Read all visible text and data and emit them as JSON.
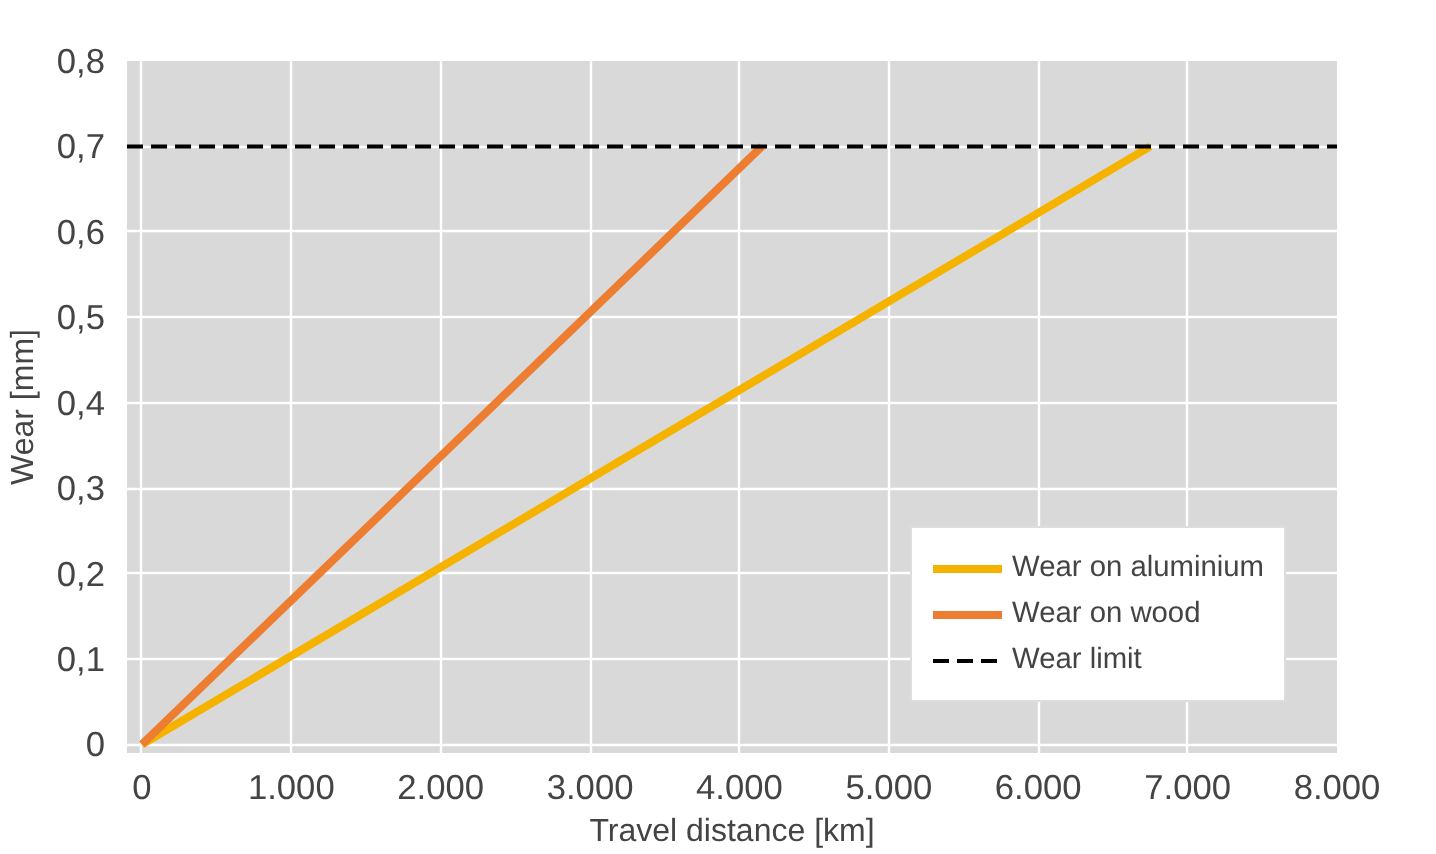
{
  "chart_data": {
    "type": "line",
    "series": [
      {
        "name": "Wear on aluminium",
        "color": "#f5b300",
        "x": [
          0,
          6750
        ],
        "values": [
          0,
          0.7
        ]
      },
      {
        "name": "Wear on wood",
        "color": "#ed7d31",
        "x": [
          0,
          4150
        ],
        "values": [
          0,
          0.7
        ]
      }
    ],
    "xlabel": "Travel distance [km]",
    "ylabel": "Wear [mm]",
    "xlim": [
      -100,
      8000
    ],
    "ylim": [
      -0.01,
      0.8
    ],
    "xticks": [
      {
        "value": 0,
        "label": "0"
      },
      {
        "value": 1000,
        "label": "1.000"
      },
      {
        "value": 2000,
        "label": "2.000"
      },
      {
        "value": 3000,
        "label": "3.000"
      },
      {
        "value": 4000,
        "label": "4.000"
      },
      {
        "value": 5000,
        "label": "5.000"
      },
      {
        "value": 6000,
        "label": "6.000"
      },
      {
        "value": 7000,
        "label": "7.000"
      },
      {
        "value": 8000,
        "label": "8.000"
      }
    ],
    "yticks": [
      {
        "value": 0,
        "label": "0"
      },
      {
        "value": 0.1,
        "label": "0,1"
      },
      {
        "value": 0.2,
        "label": "0,2"
      },
      {
        "value": 0.3,
        "label": "0,3"
      },
      {
        "value": 0.4,
        "label": "0,4"
      },
      {
        "value": 0.5,
        "label": "0,5"
      },
      {
        "value": 0.6,
        "label": "0,6"
      },
      {
        "value": 0.7,
        "label": "0,7"
      },
      {
        "value": 0.8,
        "label": "0,8"
      }
    ],
    "ref_lines": [
      {
        "axis": "y",
        "value": 0.7,
        "label": "Wear limit",
        "color": "#000000",
        "line_style": "dashed"
      }
    ],
    "grid": true,
    "legend": "bottom right",
    "line_style": "solid",
    "marker": "none"
  }
}
